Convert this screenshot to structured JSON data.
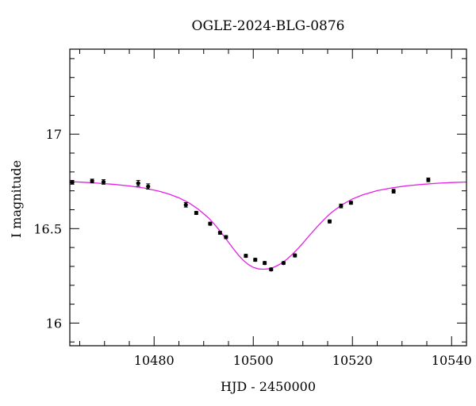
{
  "chart_data": {
    "type": "scatter",
    "title": "OGLE-2024-BLG-0876",
    "xlabel": "HJD - 2450000",
    "ylabel": "I magnitude",
    "xlim": [
      10463,
      10543
    ],
    "ylim": [
      17.45,
      15.88
    ],
    "y_inverted": true,
    "xticks_major": [
      10480,
      10500,
      10520,
      10540
    ],
    "xticks_major_labels": [
      "10480",
      "10500",
      "10520",
      "10540"
    ],
    "yticks_major": [
      16,
      16.5,
      17
    ],
    "yticks_major_labels": [
      "16",
      "16.5",
      "17"
    ],
    "colors": {
      "model": "#e61ee6",
      "points": "#000000"
    },
    "series": [
      {
        "kind": "points",
        "points": [
          {
            "x": 10463.5,
            "y": 16.745,
            "err": 0.01
          },
          {
            "x": 10467.5,
            "y": 16.752,
            "err": 0.01
          },
          {
            "x": 10469.8,
            "y": 16.747,
            "err": 0.012
          },
          {
            "x": 10476.8,
            "y": 16.74,
            "err": 0.015
          },
          {
            "x": 10478.8,
            "y": 16.723,
            "err": 0.014
          },
          {
            "x": 10486.4,
            "y": 16.626,
            "err": 0.012
          },
          {
            "x": 10488.5,
            "y": 16.583,
            "err": 0.008
          },
          {
            "x": 10491.3,
            "y": 16.526,
            "err": 0.008
          },
          {
            "x": 10493.3,
            "y": 16.478,
            "err": 0.008
          },
          {
            "x": 10494.5,
            "y": 16.455,
            "err": 0.008
          },
          {
            "x": 10498.5,
            "y": 16.356,
            "err": 0.008
          },
          {
            "x": 10500.4,
            "y": 16.335,
            "err": 0.008
          },
          {
            "x": 10502.3,
            "y": 16.318,
            "err": 0.008
          },
          {
            "x": 10503.6,
            "y": 16.284,
            "err": 0.007
          },
          {
            "x": 10506.1,
            "y": 16.318,
            "err": 0.007
          },
          {
            "x": 10508.4,
            "y": 16.358,
            "err": 0.008
          },
          {
            "x": 10515.4,
            "y": 16.538,
            "err": 0.008
          },
          {
            "x": 10517.7,
            "y": 16.62,
            "err": 0.01
          },
          {
            "x": 10519.7,
            "y": 16.637,
            "err": 0.008
          },
          {
            "x": 10528.3,
            "y": 16.698,
            "err": 0.01
          },
          {
            "x": 10535.3,
            "y": 16.758,
            "err": 0.01
          }
        ]
      },
      {
        "kind": "model_curve",
        "x": [
          10463,
          10466,
          10469,
          10472,
          10475,
          10478,
          10481,
          10483,
          10485,
          10487,
          10489,
          10491,
          10492,
          10493,
          10494,
          10495,
          10496,
          10497,
          10498,
          10499,
          10500,
          10501,
          10502,
          10503,
          10504,
          10505,
          10506,
          10507,
          10508,
          10509,
          10510,
          10511,
          10512,
          10513,
          10514,
          10515,
          10516,
          10518,
          10520,
          10522,
          10525,
          10528,
          10531,
          10534,
          10537,
          10540,
          10543
        ],
        "y": [
          16.749,
          16.745,
          16.74,
          16.734,
          16.726,
          16.715,
          16.698,
          16.683,
          16.663,
          16.637,
          16.601,
          16.556,
          16.528,
          16.497,
          16.463,
          16.428,
          16.393,
          16.36,
          16.332,
          16.31,
          16.295,
          16.287,
          16.285,
          16.287,
          16.294,
          16.306,
          16.322,
          16.343,
          16.367,
          16.394,
          16.423,
          16.454,
          16.484,
          16.513,
          16.541,
          16.567,
          16.59,
          16.628,
          16.657,
          16.678,
          16.701,
          16.716,
          16.727,
          16.734,
          16.74,
          16.744,
          16.747
        ]
      }
    ]
  }
}
